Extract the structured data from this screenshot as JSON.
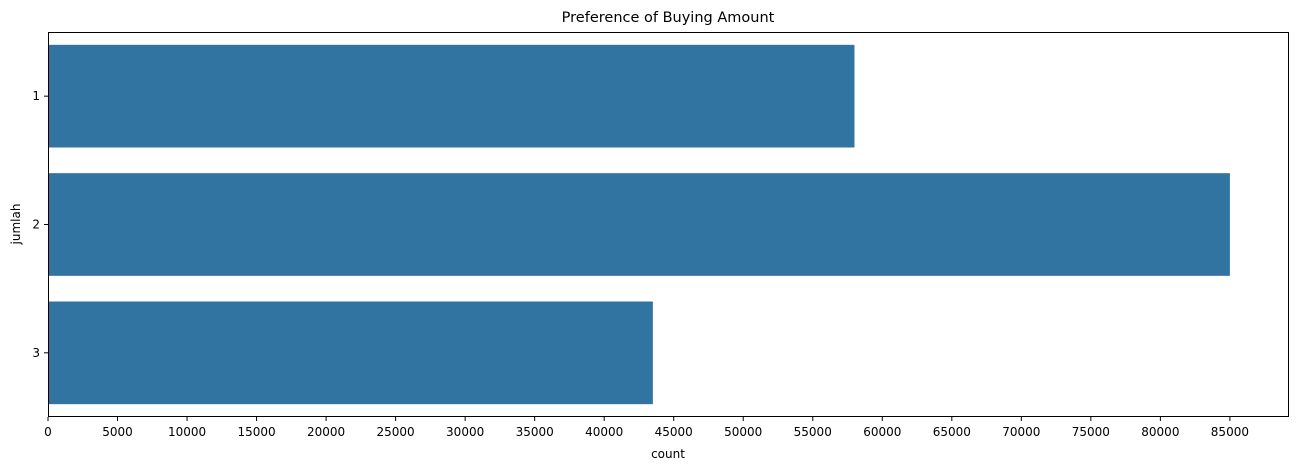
{
  "chart_data": {
    "type": "bar",
    "orientation": "horizontal",
    "title": "Preference of Buying Amount",
    "xlabel": "count",
    "ylabel": "jumlah",
    "categories": [
      "1",
      "2",
      "3"
    ],
    "values": [
      58000,
      85000,
      43500
    ],
    "xlim": [
      0,
      89250
    ],
    "xticks": [
      0,
      5000,
      10000,
      15000,
      20000,
      25000,
      30000,
      35000,
      40000,
      45000,
      50000,
      55000,
      60000,
      65000,
      70000,
      75000,
      80000,
      85000
    ],
    "grid": false,
    "legend": "none",
    "bar_color": "#3274a1"
  }
}
